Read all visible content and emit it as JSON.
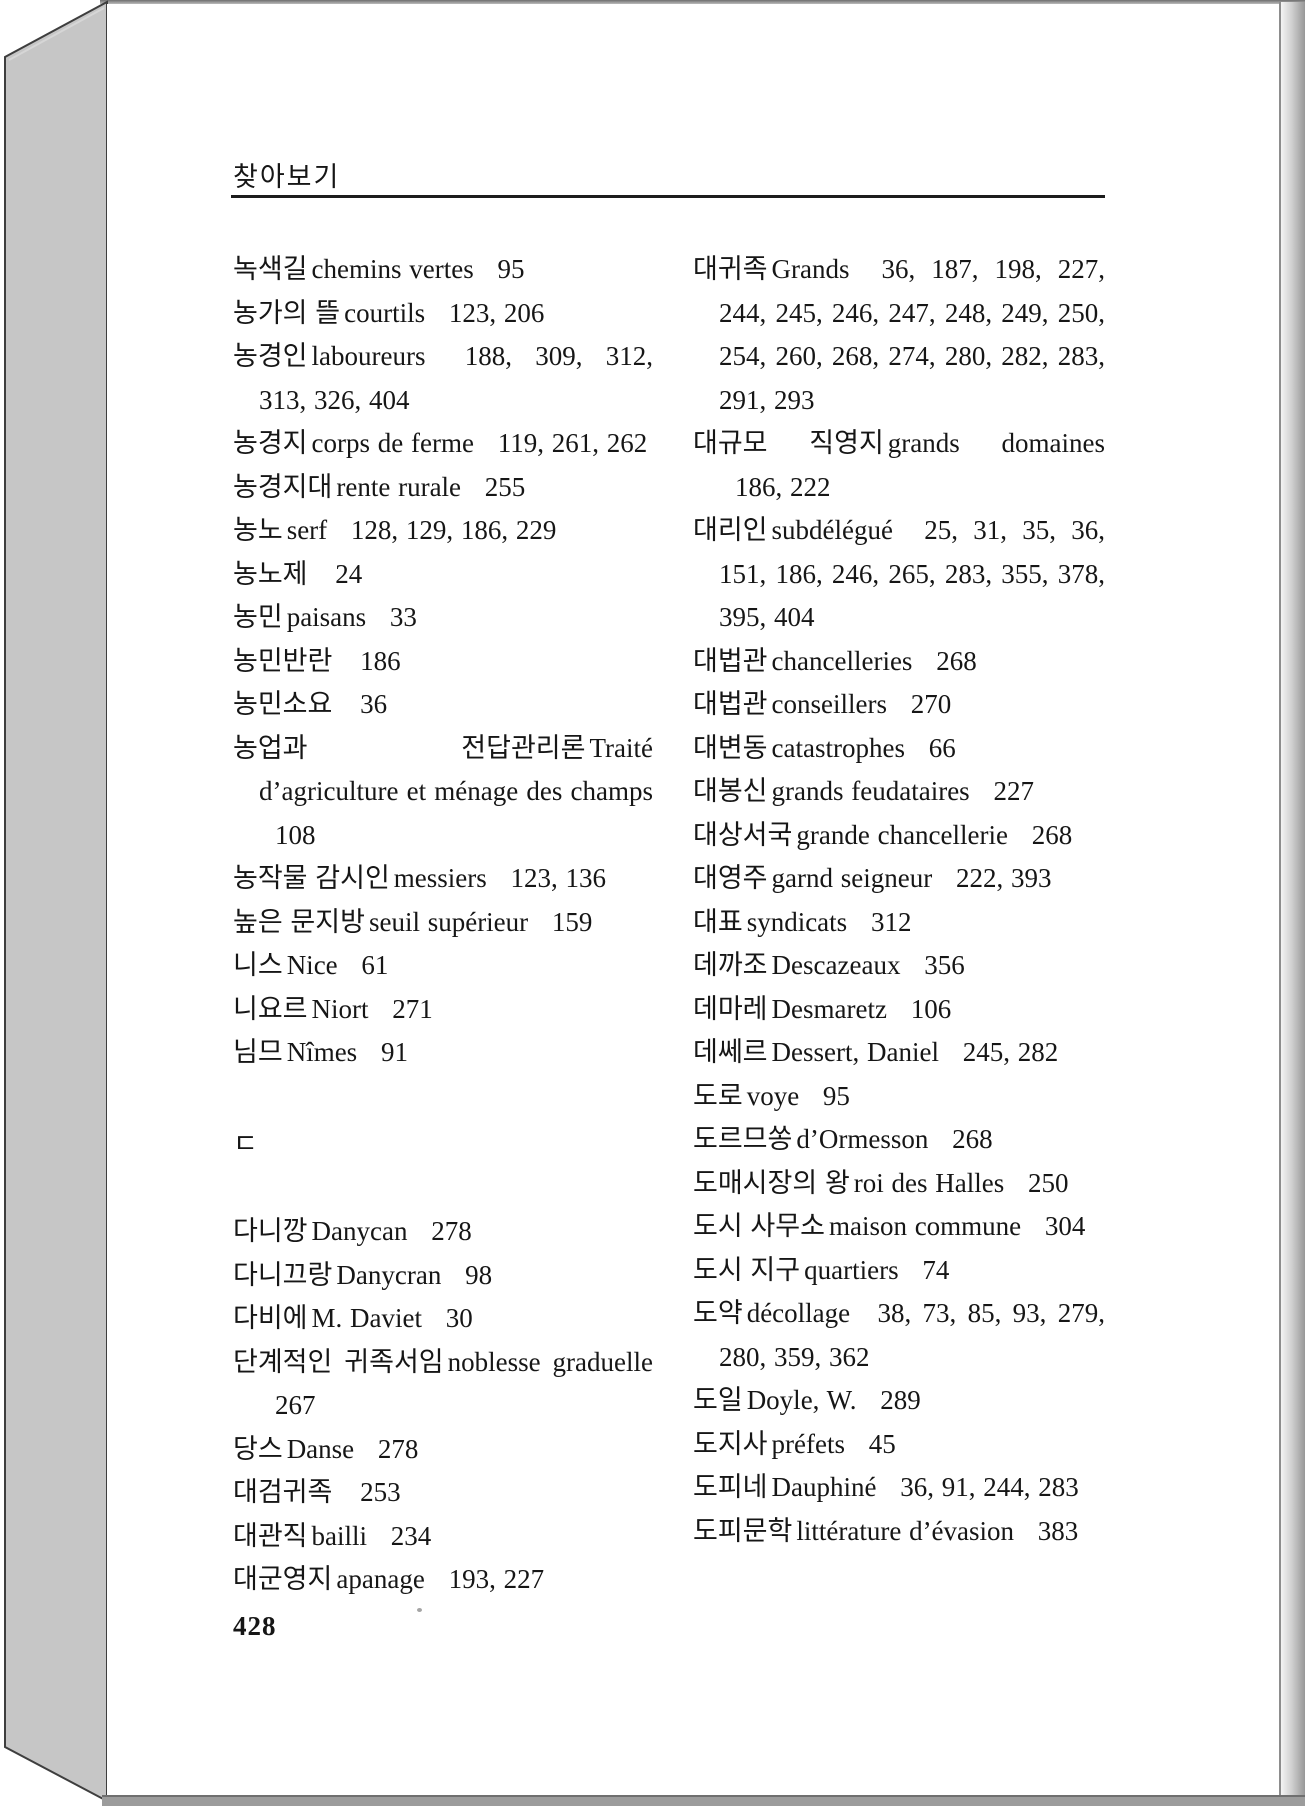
{
  "header": {
    "title": "찾아보기"
  },
  "footer": {
    "page_number": "428"
  },
  "colors": {
    "ink": "#161616",
    "page_edge_gray": "#c6c6c6",
    "edge_outline": "#3e3e3e"
  },
  "index": {
    "left_column": [
      {
        "ko": "녹색길",
        "fr": "chemins vertes",
        "pages": "95"
      },
      {
        "ko": "농가의 뜰",
        "fr": "courtils",
        "pages": "123, 206"
      },
      {
        "ko": "농경인",
        "fr": "laboureurs",
        "pages": "188, 309, 312, 313, 326, 404"
      },
      {
        "ko": "농경지",
        "fr": "corps de ferme",
        "pages": "119, 261, 262"
      },
      {
        "ko": "농경지대",
        "fr": "rente rurale",
        "pages": "255"
      },
      {
        "ko": "농노",
        "fr": "serf",
        "pages": "128, 129, 186, 229"
      },
      {
        "ko": "농노제",
        "pages": "24"
      },
      {
        "ko": "농민",
        "fr": "paisans",
        "pages": "33"
      },
      {
        "ko": "농민반란",
        "pages": "186"
      },
      {
        "ko": "농민소요",
        "pages": "36"
      },
      {
        "ko": "농업과 전답관리론",
        "fr": "Traité d’agriculture et ménage des champs",
        "pages": "108"
      },
      {
        "ko": "농작물 감시인",
        "fr": "messiers",
        "pages": "123, 136"
      },
      {
        "ko": "높은 문지방",
        "fr": "seuil supérieur",
        "pages": "159"
      },
      {
        "ko": "니스",
        "fr": "Nice",
        "pages": "61"
      },
      {
        "ko": "니요르",
        "fr": "Niort",
        "pages": "271"
      },
      {
        "ko": "님므",
        "fr": "Nîmes",
        "pages": "91"
      },
      {
        "section": "ㄷ"
      },
      {
        "ko": "다니깡",
        "fr": "Danycan",
        "pages": "278"
      },
      {
        "ko": "다니끄랑",
        "fr": "Danycran",
        "pages": "98"
      },
      {
        "ko": "다비에",
        "fr": "M. Daviet",
        "pages": "30"
      },
      {
        "ko": "단계적인 귀족서임",
        "fr": "noblesse graduelle",
        "pages": "267"
      },
      {
        "ko": "당스",
        "fr": "Danse",
        "pages": "278"
      },
      {
        "ko": "대검귀족",
        "pages": "253"
      },
      {
        "ko": "대관직",
        "fr": "bailli",
        "pages": "234"
      },
      {
        "ko": "대군영지",
        "fr": "apanage",
        "pages": "193, 227"
      }
    ],
    "right_column": [
      {
        "ko": "대귀족",
        "fr": "Grands",
        "pages": "36, 187, 198, 227, 244, 245, 246, 247, 248, 249, 250, 254, 260, 268, 274, 280, 282, 283, 291, 293"
      },
      {
        "ko": "대규모 직영지",
        "fr": "grands domaines",
        "pages": "186, 222"
      },
      {
        "ko": "대리인",
        "fr": "subdélégué",
        "pages": "25, 31, 35, 36, 151, 186, 246, 265, 283, 355, 378, 395, 404"
      },
      {
        "ko": "대법관",
        "fr": "chancelleries",
        "pages": "268"
      },
      {
        "ko": "대법관",
        "fr": "conseillers",
        "pages": "270"
      },
      {
        "ko": "대변동",
        "fr": "catastrophes",
        "pages": "66"
      },
      {
        "ko": "대봉신",
        "fr": "grands feudataires",
        "pages": "227"
      },
      {
        "ko": "대상서국",
        "fr": "grande chancellerie",
        "pages": "268"
      },
      {
        "ko": "대영주",
        "fr": "garnd seigneur",
        "pages": "222, 393"
      },
      {
        "ko": "대표",
        "fr": "syndicats",
        "pages": "312"
      },
      {
        "ko": "데까조",
        "fr": "Descazeaux",
        "pages": "356"
      },
      {
        "ko": "데마레",
        "fr": "Desmaretz",
        "pages": "106"
      },
      {
        "ko": "데쎄르",
        "fr": "Dessert, Daniel",
        "pages": "245, 282"
      },
      {
        "ko": "도로",
        "fr": "voye",
        "pages": "95"
      },
      {
        "ko": "도르므쏭",
        "fr": "d’Ormesson",
        "pages": "268"
      },
      {
        "ko": "도매시장의 왕",
        "fr": "roi des Halles",
        "pages": "250"
      },
      {
        "ko": "도시 사무소",
        "fr": "maison commune",
        "pages": "304"
      },
      {
        "ko": "도시 지구",
        "fr": "quartiers",
        "pages": "74"
      },
      {
        "ko": "도약",
        "fr": "décollage",
        "pages": "38, 73, 85, 93, 279, 280, 359, 362"
      },
      {
        "ko": "도일",
        "fr": "Doyle, W.",
        "pages": "289"
      },
      {
        "ko": "도지사",
        "fr": "préfets",
        "pages": "45"
      },
      {
        "ko": "도피네",
        "fr": "Dauphiné",
        "pages": "36, 91, 244, 283"
      },
      {
        "ko": "도피문학",
        "fr": "littérature d’évasion",
        "pages": "383"
      }
    ]
  }
}
